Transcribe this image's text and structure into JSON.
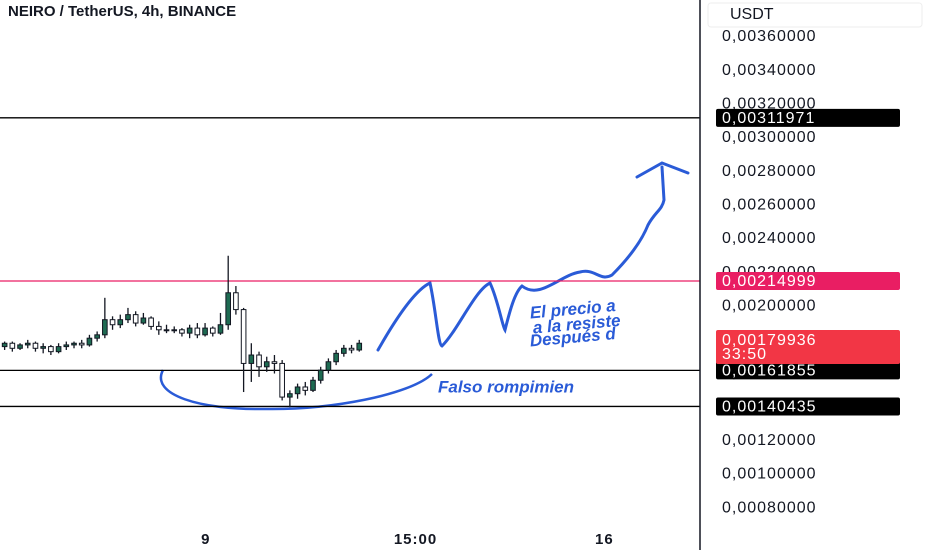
{
  "chart_data": {
    "type": "candlestick",
    "title": "NEIRO / TetherUS, 4h, BINANCE",
    "currency": "USDT",
    "x": [
      0,
      1,
      2,
      3,
      4,
      5,
      6,
      7,
      8,
      9,
      10,
      11,
      12,
      13,
      14,
      15,
      16,
      17,
      18,
      19,
      20,
      21,
      22,
      23,
      24,
      25,
      26,
      27,
      28,
      29,
      30,
      31,
      32,
      33,
      34,
      35,
      36,
      37,
      38,
      39,
      40,
      41,
      42,
      43,
      44,
      45,
      46
    ],
    "open": [
      0.00176,
      0.00178,
      0.00175,
      0.00177,
      0.00178,
      0.00175,
      0.00176,
      0.00173,
      0.00176,
      0.00177,
      0.00178,
      0.00177,
      0.00181,
      0.00183,
      0.00192,
      0.00189,
      0.00192,
      0.00195,
      0.0019,
      0.00193,
      0.00188,
      0.00186,
      0.00186,
      0.00186,
      0.00184,
      0.00187,
      0.00183,
      0.00187,
      0.00184,
      0.00189,
      0.00208,
      0.00198,
      0.00166,
      0.00171,
      0.00164,
      0.00167,
      0.00166,
      0.00146,
      0.00148,
      0.00152,
      0.0015,
      0.00156,
      0.00162,
      0.00167,
      0.00172,
      0.00175,
      0.00174
    ],
    "close": [
      0.00178,
      0.00175,
      0.00177,
      0.00178,
      0.00175,
      0.00176,
      0.00173,
      0.00176,
      0.00177,
      0.00178,
      0.00177,
      0.00181,
      0.00183,
      0.00192,
      0.00189,
      0.00192,
      0.00195,
      0.0019,
      0.00193,
      0.00188,
      0.00186,
      0.00186,
      0.00186,
      0.00184,
      0.00187,
      0.00183,
      0.00187,
      0.00184,
      0.00189,
      0.00208,
      0.00198,
      0.00166,
      0.00171,
      0.00164,
      0.00167,
      0.00166,
      0.00146,
      0.00148,
      0.00152,
      0.0015,
      0.00156,
      0.00162,
      0.00167,
      0.00172,
      0.00175,
      0.00174,
      0.00178
    ],
    "high": [
      0.00179,
      0.00179,
      0.00178,
      0.0018,
      0.00179,
      0.00178,
      0.00177,
      0.00178,
      0.00179,
      0.00179,
      0.0018,
      0.00183,
      0.00185,
      0.00205,
      0.00194,
      0.00195,
      0.00199,
      0.00197,
      0.00196,
      0.00194,
      0.00191,
      0.00189,
      0.00188,
      0.00187,
      0.00189,
      0.0019,
      0.0019,
      0.00188,
      0.00196,
      0.0023,
      0.00212,
      0.00199,
      0.00178,
      0.00173,
      0.0017,
      0.00171,
      0.00168,
      0.0015,
      0.00154,
      0.00155,
      0.00158,
      0.00164,
      0.00169,
      0.00174,
      0.00177,
      0.00177,
      0.0018
    ],
    "low": [
      0.00174,
      0.00173,
      0.00174,
      0.00175,
      0.00173,
      0.00172,
      0.00171,
      0.00172,
      0.00174,
      0.00175,
      0.00175,
      0.00176,
      0.00179,
      0.00181,
      0.00186,
      0.00187,
      0.0019,
      0.00188,
      0.00189,
      0.00186,
      0.00183,
      0.00184,
      0.00184,
      0.00182,
      0.00181,
      0.00181,
      0.00182,
      0.00182,
      0.00183,
      0.00186,
      0.00195,
      0.00149,
      0.00155,
      0.00158,
      0.00161,
      0.0016,
      0.00144,
      0.0014,
      0.00145,
      0.00147,
      0.00149,
      0.00154,
      0.0016,
      0.00165,
      0.0017,
      0.00172,
      0.00173
    ],
    "up_color": "#1e6b52",
    "down_color": "#ffffff",
    "xlim": [
      -0.6,
      90.2
    ],
    "xticks": [
      {
        "value": 26.1,
        "label": "9"
      },
      {
        "value": 53.3,
        "label": "15:00"
      },
      {
        "value": 77.8,
        "label": "16"
      }
    ],
    "ylim": [
      0.00067,
      0.00382
    ],
    "yticks": [
      {
        "value": 0.0036,
        "label": "0,00360000"
      },
      {
        "value": 0.0034,
        "label": "0,00340000"
      },
      {
        "value": 0.0032,
        "label": "0,00320000"
      },
      {
        "value": 0.003,
        "label": "0,00300000"
      },
      {
        "value": 0.0028,
        "label": "0,00280000"
      },
      {
        "value": 0.0026,
        "label": "0,00260000"
      },
      {
        "value": 0.0024,
        "label": "0,00240000"
      },
      {
        "value": 0.0022,
        "label": "0,00220000"
      },
      {
        "value": 0.002,
        "label": "0,00200000"
      },
      {
        "value": 0.0018,
        "label": "0,00180000"
      },
      {
        "value": 0.0016,
        "label": "0,00160000"
      },
      {
        "value": 0.0014,
        "label": "0,00140000"
      },
      {
        "value": 0.0012,
        "label": "0,00120000"
      },
      {
        "value": 0.001,
        "label": "0,00100000"
      },
      {
        "value": 0.0008,
        "label": "0,00080000"
      }
    ],
    "levels": [
      {
        "value": 0.00311971,
        "label": "0,00311971",
        "color": "#000000"
      },
      {
        "value": 0.00214999,
        "label": "0,00214999",
        "color": "#e91e63"
      },
      {
        "value": 0.00161855,
        "label": "0,00161855",
        "color": "#000000"
      },
      {
        "value": 0.00140435,
        "label": "0,00140435",
        "color": "#000000"
      }
    ],
    "last_price": {
      "value": 0.00179936,
      "label": "0,00179936",
      "countdown": "33:50",
      "color": "#f23645"
    },
    "annotations": [
      "El precio a",
      "a la resiste",
      "Después d",
      "Falso rompimien"
    ]
  }
}
